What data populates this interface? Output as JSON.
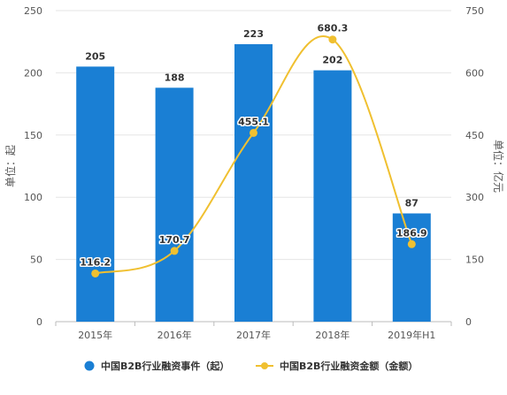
{
  "chart_data": {
    "type": "bar",
    "categories": [
      "2015年",
      "2016年",
      "2017年",
      "2018年",
      "2019年H1"
    ],
    "series": [
      {
        "name": "中国B2B行业融资事件（起）",
        "type": "bar",
        "axis": "left",
        "color": "#1a7fd4",
        "values": [
          205,
          188,
          223,
          202,
          87
        ]
      },
      {
        "name": "中国B2B行业融资金额（金额）",
        "type": "line",
        "axis": "right",
        "color": "#f0c030",
        "values": [
          116.2,
          170.7,
          455.1,
          680.3,
          186.9
        ]
      }
    ],
    "ylabel": "单位：起",
    "y2label": "单位：亿元",
    "ylim": [
      0,
      250
    ],
    "yticks": [
      0,
      50,
      100,
      150,
      200,
      250
    ],
    "y2lim": [
      0,
      750
    ],
    "y2ticks": [
      0,
      150,
      300,
      450,
      600,
      750
    ],
    "grid": true,
    "legend_position": "bottom"
  }
}
